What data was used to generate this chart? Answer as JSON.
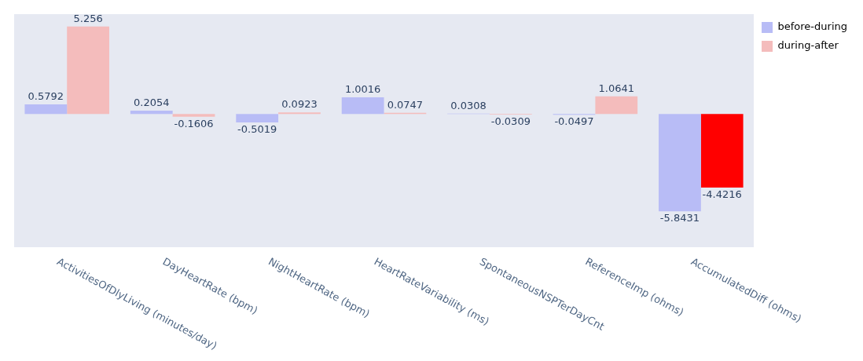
{
  "chart_data": {
    "type": "bar",
    "categories": [
      "ActivitiesOfDlyLiving (minutes/day)",
      "DayHeartRate (bpm)",
      "NightHeartRate (bpm)",
      "HeartRateVariability (ms)",
      "SpontaneousNSPTerDayCnt",
      "ReferenceImp (ohms)",
      "AccumulatedDiff (ohms)"
    ],
    "series": [
      {
        "name": "before-during",
        "color": "#b8bcf6",
        "values": [
          0.5792,
          0.2054,
          -0.5019,
          1.0016,
          0.0308,
          -0.0497,
          -5.8431
        ]
      },
      {
        "name": "during-after",
        "color": "#f4bcbc",
        "colors": [
          "#f4bcbc",
          "#f4bcbc",
          "#f4bcbc",
          "#f4bcbc",
          "#f4bcbc",
          "#f4bcbc",
          "#ff0000"
        ],
        "values": [
          5.256,
          -0.1606,
          0.0923,
          0.0747,
          -0.0309,
          1.0641,
          -4.4216
        ]
      }
    ],
    "data_labels": true,
    "legend": "top right"
  }
}
